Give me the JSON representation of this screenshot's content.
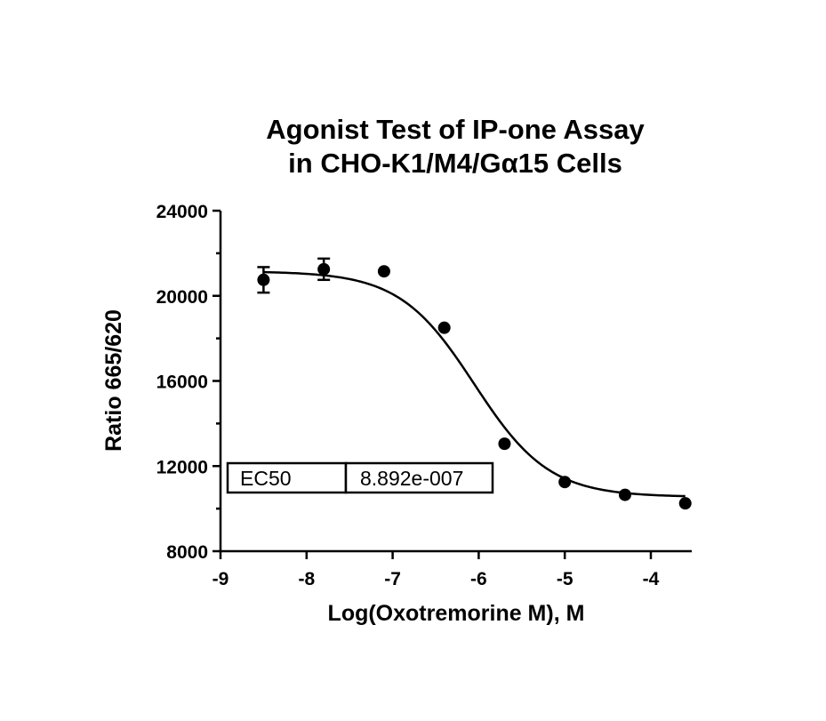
{
  "chart_data": {
    "type": "scatter",
    "title_lines": [
      "Agonist Test of IP-one Assay",
      "in CHO-K1/M4/Gα15 Cells"
    ],
    "xlabel": "Log(Oxotremorine M), M",
    "ylabel": "Ratio 665/620",
    "xlim": [
      -9,
      -3.5
    ],
    "ylim": [
      8000,
      24000
    ],
    "x_ticks": [
      -9,
      -8,
      -7,
      -6,
      -5,
      -4
    ],
    "x_tick_labels": [
      "-9",
      "-8",
      "-7",
      "-6",
      "-5",
      "-4"
    ],
    "y_ticks": [
      8000,
      12000,
      16000,
      20000,
      24000
    ],
    "y_tick_labels": [
      "8000",
      "12000",
      "16000",
      "20000",
      "24000"
    ],
    "grid": false,
    "legend": "none",
    "points": [
      {
        "x": -8.5,
        "y": 20750,
        "err": 600
      },
      {
        "x": -7.8,
        "y": 21250,
        "err": 500
      },
      {
        "x": -7.1,
        "y": 21150,
        "err": 0
      },
      {
        "x": -6.4,
        "y": 18500,
        "err": 0
      },
      {
        "x": -5.7,
        "y": 13050,
        "err": 0
      },
      {
        "x": -5.0,
        "y": 11250,
        "err": 0
      },
      {
        "x": -4.3,
        "y": 10650,
        "err": 0
      },
      {
        "x": -3.6,
        "y": 10250,
        "err": 0
      }
    ],
    "fit": {
      "model": "sigmoidal dose-response",
      "top": 21150,
      "bottom": 10550,
      "log_ec50": -6.051,
      "hill_slope": -1.0,
      "x_range": [
        -8.5,
        -3.6
      ]
    },
    "annotation": {
      "label": "EC50",
      "value": "8.892e-007"
    }
  }
}
